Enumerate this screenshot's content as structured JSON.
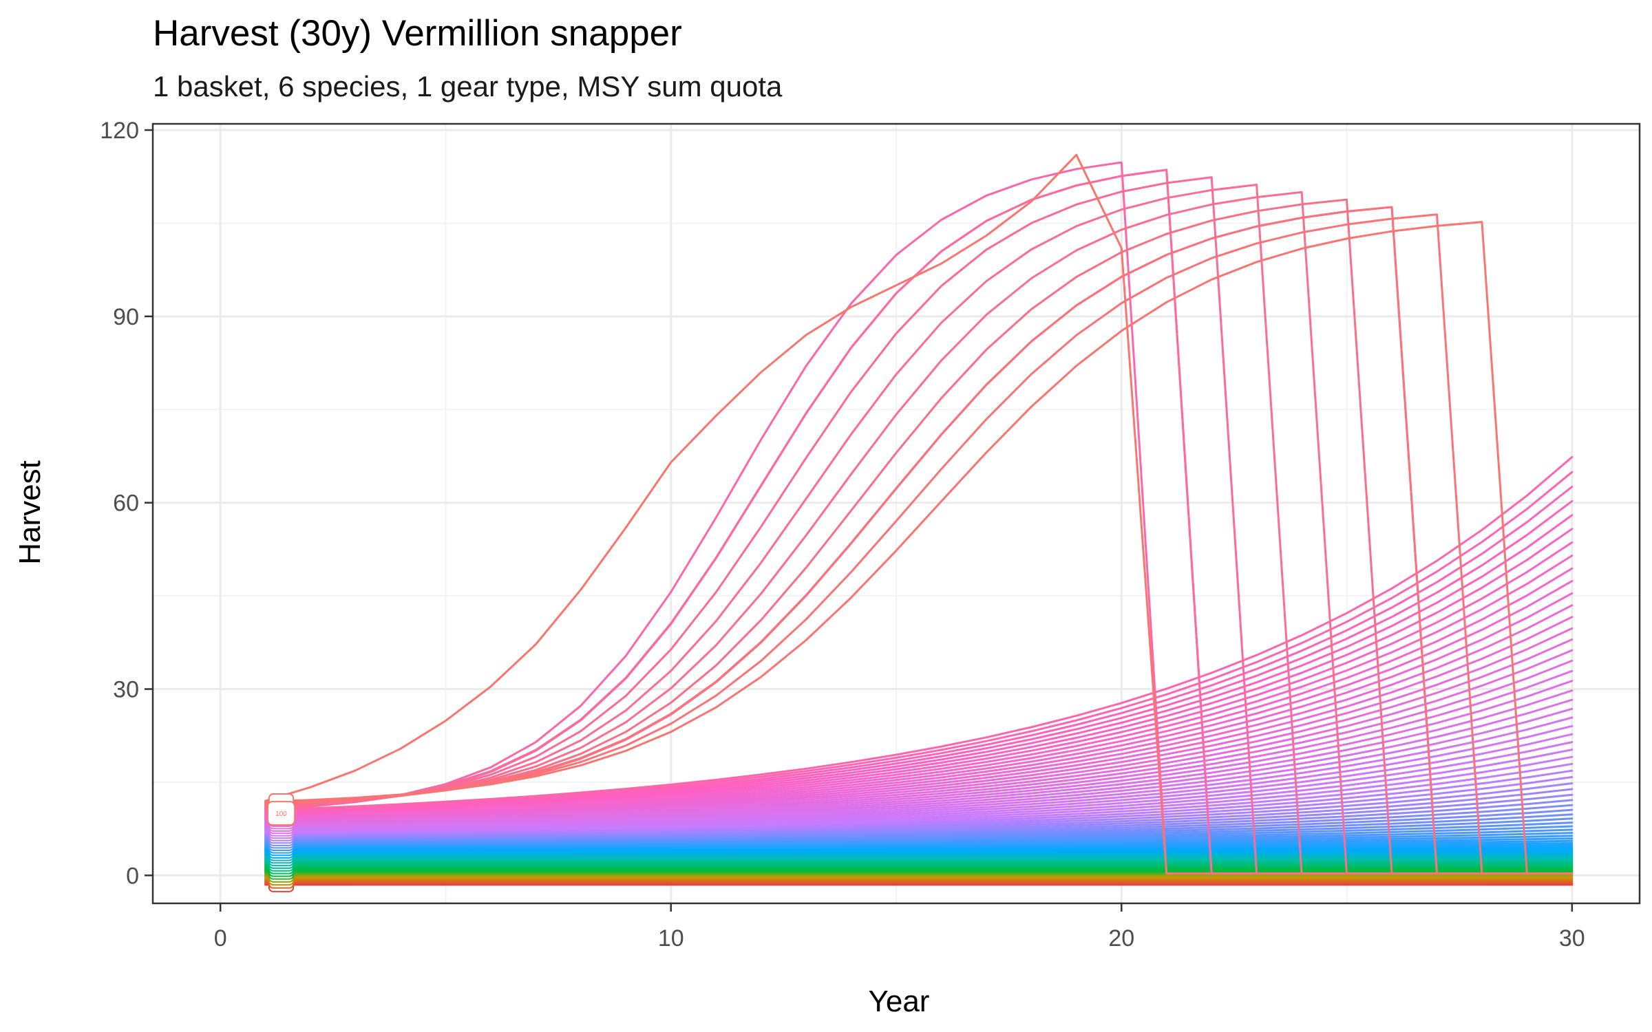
{
  "chart_data": {
    "type": "line",
    "title": "Harvest (30y) Vermillion snapper",
    "subtitle": "1 basket, 6 species, 1 gear type, MSY sum quota",
    "xlabel": "Year",
    "ylabel": "Harvest",
    "xlim": [
      -1.5,
      31.5
    ],
    "ylim": [
      -4.5,
      121
    ],
    "x_ticks": [
      0,
      10,
      20,
      30
    ],
    "y_ticks": [
      0,
      30,
      60,
      90,
      120
    ],
    "grid": true,
    "legend": "none",
    "x": [
      1,
      2,
      3,
      4,
      5,
      6,
      7,
      8,
      9,
      10,
      11,
      12,
      13,
      14,
      15,
      16,
      17,
      18,
      19,
      20,
      21,
      22,
      23,
      24,
      25,
      26,
      27,
      28,
      29,
      30
    ],
    "family": {
      "count": 100,
      "start_range": [
        -1.5,
        12
      ],
      "outlier_peak_range": [
        103,
        116
      ],
      "upper_end_range": [
        60,
        100
      ],
      "collapse_floor": 0.3
    },
    "upper_series_sample": [
      {
        "name": "100",
        "values": [
          12.0,
          14.2,
          16.9,
          20.4,
          24.9,
          30.4,
          37.2,
          46.0,
          56.0,
          66.5,
          74.0,
          81.0,
          87.0,
          91.5,
          95.0,
          98.5,
          103.0,
          108.5,
          116.0,
          101.0,
          0.3,
          0.3,
          0.3,
          0.3,
          0.3,
          0.3,
          0.3,
          0.3,
          0.3,
          0.3
        ]
      }
    ],
    "annotations": [
      {
        "text": "100",
        "x": 1.35,
        "y": 10
      }
    ],
    "colors": {
      "lowest": "#c77cff",
      "low_green": "#00ba38",
      "mid_teal": "#00bfc4",
      "mid_blue": "#00a9ff",
      "upper_violet": "#c77cff",
      "upper_magenta": "#ff61c3",
      "top_orange": "#f8766d"
    }
  }
}
